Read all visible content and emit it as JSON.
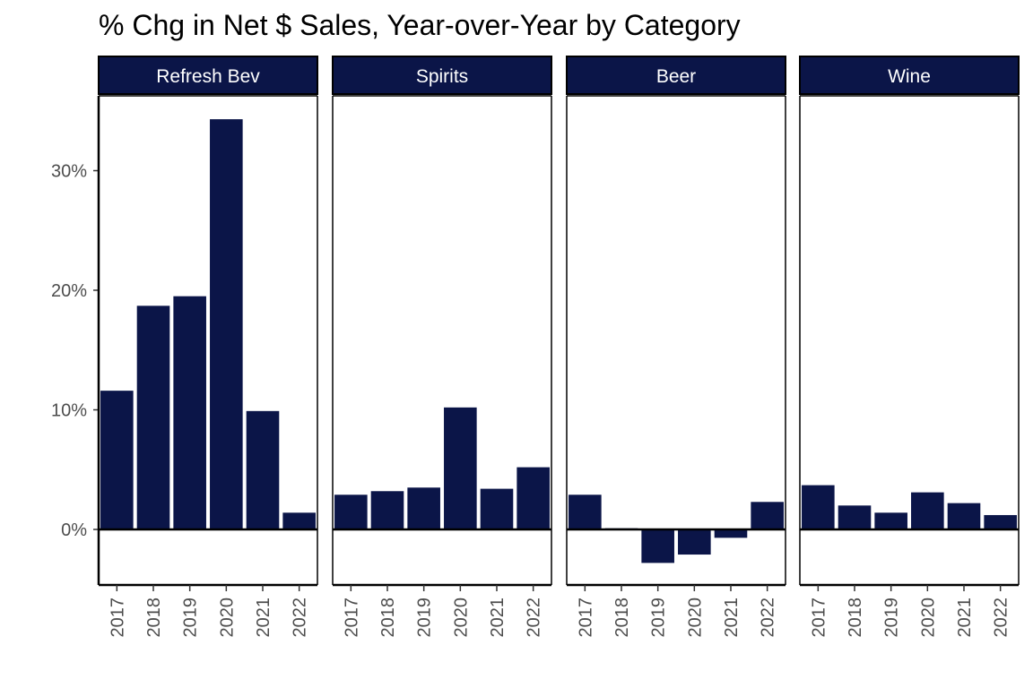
{
  "chart_data": {
    "type": "bar",
    "title": "% Chg in Net $ Sales, Year-over-Year by Category",
    "xlabel": "",
    "ylabel": "",
    "categories": [
      "2017",
      "2018",
      "2019",
      "2020",
      "2021",
      "2022"
    ],
    "y_ticks": [
      0,
      10,
      20,
      30
    ],
    "y_tick_labels": [
      "0%",
      "10%",
      "20%",
      "30%"
    ],
    "ylim": [
      -4.5,
      36.2
    ],
    "grid": false,
    "bar_color": "#0b1548",
    "strip_color": "#0b1548",
    "panels": [
      {
        "name": "Refresh Bev",
        "values": [
          11.6,
          18.7,
          19.5,
          34.3,
          9.9,
          1.4
        ]
      },
      {
        "name": "Spirits",
        "values": [
          2.9,
          3.2,
          3.5,
          10.2,
          3.4,
          5.2
        ]
      },
      {
        "name": "Beer",
        "values": [
          2.9,
          0.1,
          -2.8,
          -2.1,
          -0.7,
          2.3
        ]
      },
      {
        "name": "Wine",
        "values": [
          3.7,
          2.0,
          1.4,
          3.1,
          2.2,
          1.2
        ]
      }
    ]
  }
}
